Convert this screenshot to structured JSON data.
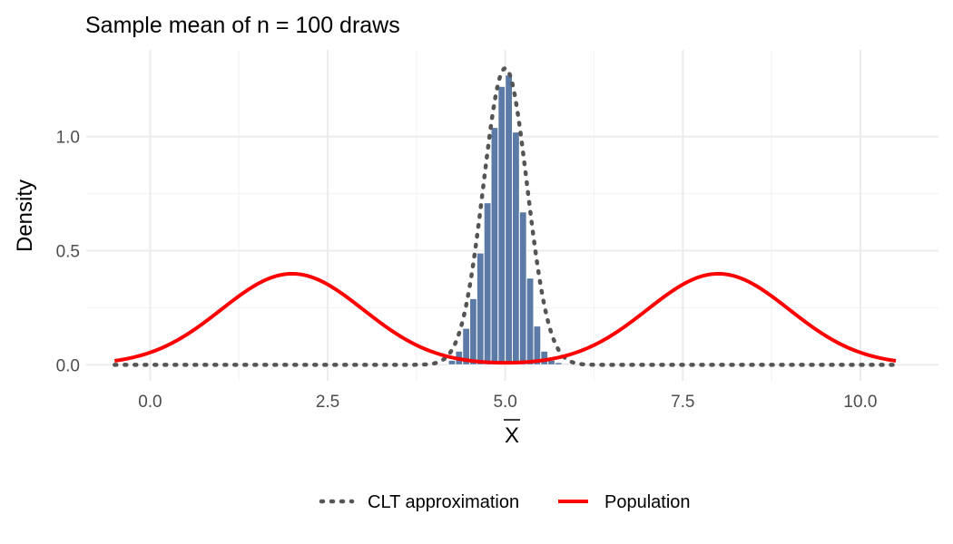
{
  "chart_data": {
    "type": "bar",
    "title": "Sample mean of n = 100 draws",
    "xlabel": "X",
    "xlabel_overline": true,
    "ylabel": "Density",
    "xlim": [
      -0.9,
      11.1
    ],
    "ylim": [
      -0.07,
      1.38
    ],
    "x_ticks": [
      0,
      2.5,
      5,
      7.5,
      10
    ],
    "x_tick_labels": [
      "0.0",
      "2.5",
      "5.0",
      "7.5",
      "10.0"
    ],
    "y_ticks": [
      0,
      0.5,
      1
    ],
    "y_tick_labels": [
      "0.0",
      "0.5",
      "1.0"
    ],
    "grid": true,
    "histogram": {
      "color": "#5b7ba6",
      "border_color": "#ffffff",
      "bin_width": 0.1,
      "bins_left": [
        4.2,
        4.3,
        4.4,
        4.5,
        4.6,
        4.7,
        4.8,
        4.9,
        5.0,
        5.1,
        5.2,
        5.3,
        5.4,
        5.5,
        5.6,
        5.7,
        5.8
      ],
      "density": [
        0.02,
        0.06,
        0.16,
        0.29,
        0.49,
        0.71,
        1.04,
        1.22,
        1.27,
        1.02,
        0.67,
        0.38,
        0.17,
        0.06,
        0.02,
        0.01,
        0.005
      ]
    },
    "series": [
      {
        "name": "CLT approximation",
        "kind": "normal_density",
        "mean": 5.0,
        "sd": 0.307,
        "color": "#555555",
        "style": "dotted",
        "x_range": [
          -0.5,
          10.5
        ]
      },
      {
        "name": "Population",
        "kind": "normal_mixture_density",
        "components": [
          {
            "mean": 2.0,
            "sd": 1.0,
            "weight": 1.0
          },
          {
            "mean": 8.0,
            "sd": 1.0,
            "weight": 1.0
          }
        ],
        "color": "#ff0000",
        "style": "solid",
        "x_range": [
          -0.5,
          10.5
        ]
      }
    ],
    "legend": {
      "position": "bottom",
      "entries": [
        "CLT approximation",
        "Population"
      ]
    }
  }
}
